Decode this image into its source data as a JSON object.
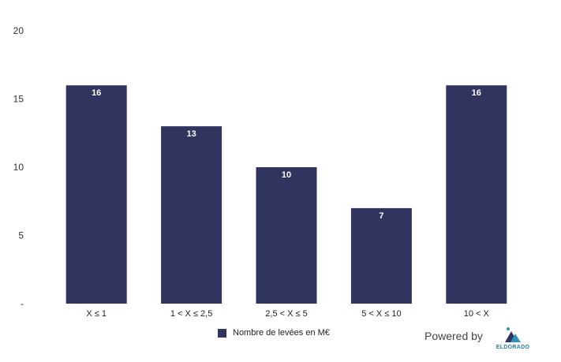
{
  "chart_data": {
    "type": "bar",
    "categories": [
      "X ≤ 1",
      "1 <  X ≤ 2,5",
      "2,5 < X ≤ 5",
      "5 < X ≤ 10",
      "10 < X"
    ],
    "series": [
      {
        "name": "Nombre de levées en M€",
        "values": [
          16,
          13,
          10,
          7,
          16
        ]
      }
    ],
    "ylim": [
      0,
      20
    ],
    "yticks": [
      "-",
      "5",
      "10",
      "15",
      "20"
    ],
    "grid": false,
    "legend_position": "bottom",
    "bar_color": "#30345f",
    "data_label_color": "#ffffff"
  },
  "footer": {
    "powered_by": "Powered by",
    "logo_text": "ELDORADO",
    "logo_icon": "eldorado-mountain-logo",
    "logo_colors": [
      "#30345f",
      "#2e8fc0"
    ]
  }
}
